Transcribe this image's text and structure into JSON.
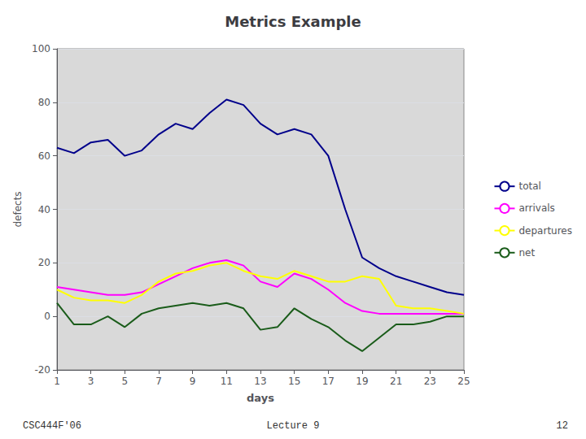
{
  "chart_data": {
    "type": "line",
    "title": "Metrics Example",
    "xlabel": "days",
    "ylabel": "defects",
    "xlim": [
      1,
      25
    ],
    "ylim": [
      -20,
      100
    ],
    "xticks": [
      1,
      3,
      5,
      7,
      9,
      11,
      13,
      15,
      17,
      19,
      21,
      23,
      25
    ],
    "yticks": [
      -20,
      0,
      20,
      40,
      60,
      80,
      100
    ],
    "grid": true,
    "legend": "right",
    "annotations": [
      "CSC444F'06",
      "Lecture 9",
      "12"
    ],
    "x": [
      1,
      2,
      3,
      4,
      5,
      6,
      7,
      8,
      9,
      10,
      11,
      12,
      13,
      14,
      15,
      16,
      17,
      18,
      19,
      20,
      21,
      22,
      23,
      24,
      25
    ],
    "series": [
      {
        "name": "total",
        "color": "#00008B",
        "values": [
          63,
          61,
          65,
          66,
          60,
          62,
          68,
          72,
          70,
          76,
          81,
          79,
          72,
          68,
          70,
          68,
          60,
          40,
          22,
          18,
          15,
          13,
          11,
          9,
          8
        ]
      },
      {
        "name": "arrivals",
        "color": "#FF00FF",
        "values": [
          11,
          10,
          9,
          8,
          8,
          9,
          12,
          15,
          18,
          20,
          21,
          19,
          13,
          11,
          16,
          14,
          10,
          5,
          2,
          1,
          1,
          1,
          1,
          1,
          1
        ]
      },
      {
        "name": "departures",
        "color": "#FFFF00",
        "values": [
          10,
          7,
          6,
          6,
          5,
          8,
          13,
          16,
          17,
          19,
          20,
          17,
          15,
          14,
          17,
          15,
          13,
          13,
          15,
          14,
          4,
          3,
          3,
          2,
          1
        ]
      },
      {
        "name": "net",
        "color": "#1a5c1a",
        "values": [
          5,
          -3,
          -3,
          0,
          -4,
          1,
          3,
          4,
          5,
          4,
          5,
          3,
          -5,
          -4,
          3,
          -1,
          -4,
          -9,
          -13,
          -8,
          -3,
          -3,
          -2,
          0,
          0
        ]
      }
    ]
  }
}
